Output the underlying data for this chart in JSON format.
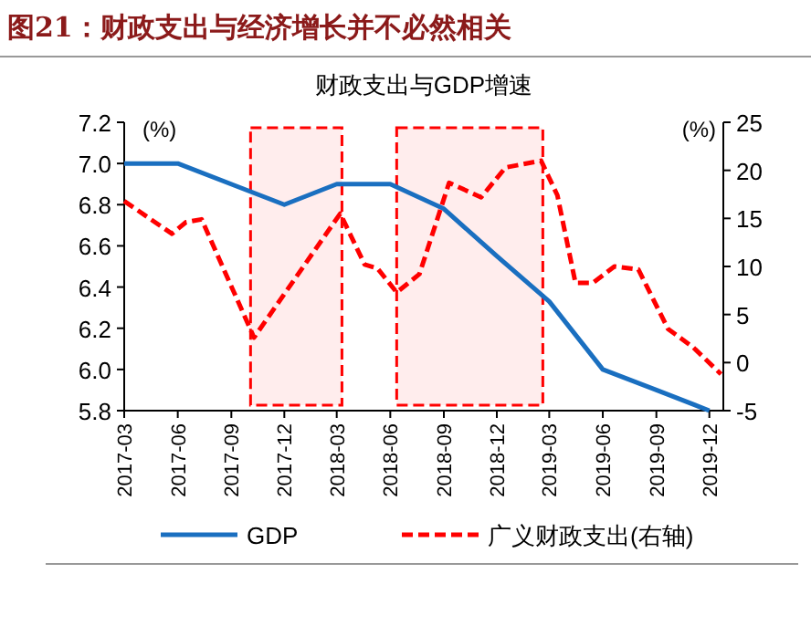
{
  "chart_data": {
    "type": "line",
    "title": "图21：财政支出与经济增长并不必然相关",
    "subtitle": "财政支出与GDP增速",
    "ylabel": "(%)",
    "y2label": "(%)",
    "xlim": [
      "2017-03-01",
      "2019-12-25"
    ],
    "xticks": [
      "2017-03",
      "2017-06",
      "2017-09",
      "2017-12",
      "2018-03",
      "2018-06",
      "2018-09",
      "2018-12",
      "2019-03",
      "2019-06",
      "2019-09",
      "2019-12"
    ],
    "ylim": [
      5.8,
      7.2
    ],
    "yticks": [
      5.8,
      {
        "value": 6.0,
        "label": "6.0"
      },
      6.2,
      6.4,
      6.6,
      6.8,
      {
        "value": 7.0,
        "label": "7.0"
      },
      7.2
    ],
    "y2lim": [
      -5,
      25
    ],
    "y2ticks": [
      -5,
      0,
      5,
      10,
      15,
      20,
      25
    ],
    "grid": false,
    "legend": "bottom",
    "marker": "none",
    "series": [
      {
        "name": "GDP",
        "color": "#1a6fc0",
        "line_style": "solid",
        "x": [
          "2017-03",
          "2017-06",
          "2017-12",
          "2018-03",
          "2018-06",
          "2018-09",
          "2018-12",
          "2019-03",
          "2019-06",
          "2019-09",
          "2019-12"
        ],
        "values": [
          7.0,
          7.0,
          6.8,
          6.9,
          6.9,
          6.78,
          6.55,
          6.33,
          6.0,
          5.9,
          5.8
        ]
      },
      {
        "name": "广义财政支出(右轴)",
        "color": "#ff0000",
        "line_style": "dashed",
        "axis": "y2",
        "x": [
          "2017-03-01",
          "2017-05-22",
          "2017-06-15",
          "2017-07-12",
          "2017-10-10",
          "2018-03-07",
          "2018-04-18",
          "2018-05-10",
          "2018-06-12",
          "2018-07-21",
          "2018-09-10",
          "2018-11-04",
          "2018-12-16",
          "2019-02-15",
          "2019-03-15",
          "2019-04-15",
          "2019-05-15",
          "2019-06-21",
          "2019-08-01",
          "2019-09-21",
          "2019-11-03",
          "2019-12-21"
        ],
        "values": [
          16.8,
          13.4,
          14.6,
          14.9,
          2.6,
          15.5,
          10.2,
          9.8,
          7.3,
          9.2,
          18.7,
          17.2,
          20.3,
          21.0,
          17.4,
          8.3,
          8.3,
          10.0,
          9.7,
          3.5,
          1.6,
          -1.2
        ]
      }
    ],
    "bands": [
      {
        "axis": "x",
        "from": "2017-10-04",
        "to": "2018-03-10",
        "color": "#ff0000"
      },
      {
        "axis": "x",
        "from": "2018-06-12",
        "to": "2019-02-18",
        "color": "#ff0000"
      }
    ]
  }
}
